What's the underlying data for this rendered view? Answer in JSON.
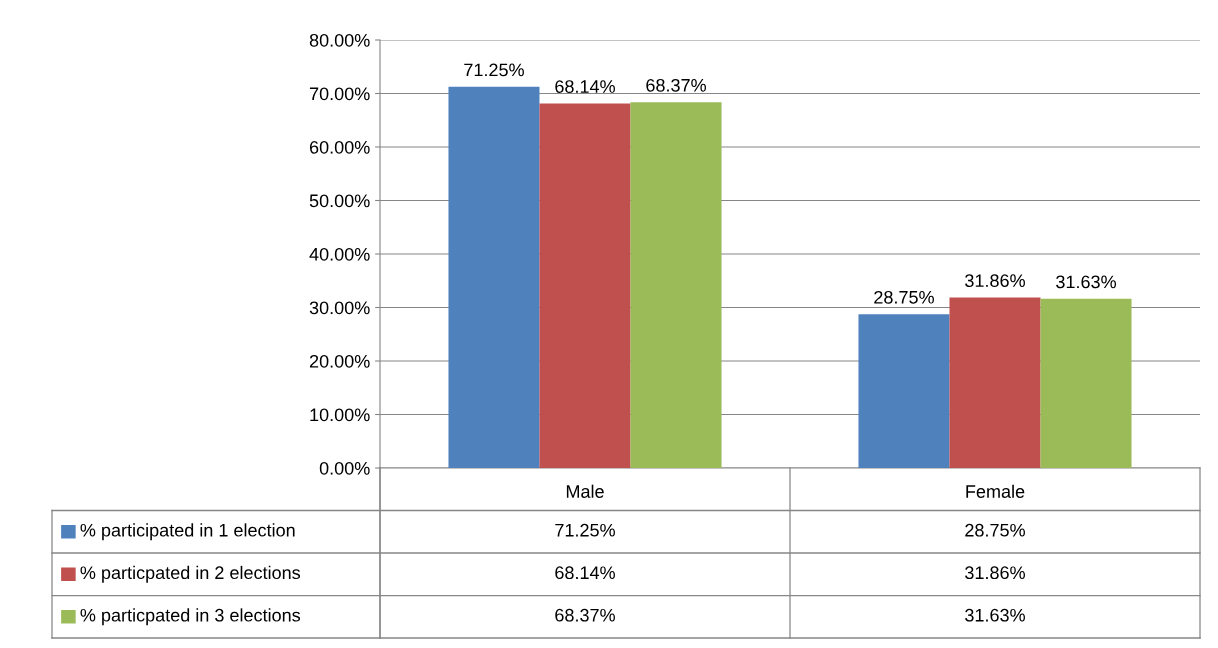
{
  "chart_data": {
    "type": "bar",
    "categories": [
      "Male",
      "Female"
    ],
    "series": [
      {
        "name": "% participated in 1 election",
        "color": "#4f81bd",
        "values": [
          71.25,
          28.75
        ],
        "value_labels": [
          "71.25%",
          "28.75%"
        ]
      },
      {
        "name": "% particpated in 2 elections",
        "color": "#c0504d",
        "values": [
          68.14,
          31.86
        ],
        "value_labels": [
          "68.14%",
          "31.86%"
        ]
      },
      {
        "name": "% particpated in 3 elections",
        "color": "#9bbb59",
        "values": [
          68.37,
          31.63
        ],
        "value_labels": [
          "68.37%",
          "31.63%"
        ]
      }
    ],
    "ylim": [
      0,
      80
    ],
    "yticks": [
      {
        "value": 0,
        "label": "0.00%"
      },
      {
        "value": 10,
        "label": "10.00%"
      },
      {
        "value": 20,
        "label": "20.00%"
      },
      {
        "value": 30,
        "label": "30.00%"
      },
      {
        "value": 40,
        "label": "40.00%"
      },
      {
        "value": 50,
        "label": "50.00%"
      },
      {
        "value": 60,
        "label": "60.00%"
      },
      {
        "value": 70,
        "label": "70.00%"
      },
      {
        "value": 80,
        "label": "80.00%"
      }
    ],
    "grid": "y",
    "legend": "bottom left"
  }
}
